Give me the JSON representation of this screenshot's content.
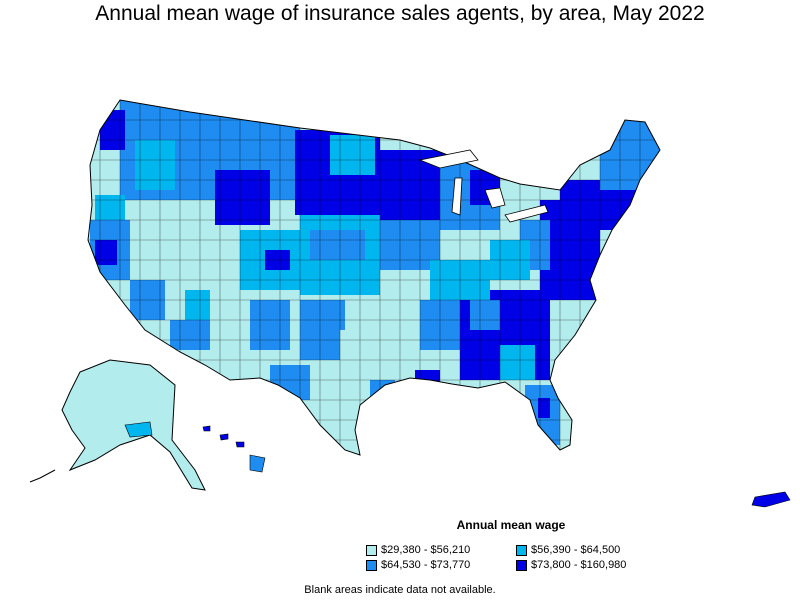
{
  "title": "Annual mean wage of insurance sales agents, by area, May 2022",
  "legend": {
    "title": "Annual mean wage",
    "items": [
      {
        "label": "$29,380 - $56,210",
        "color": "#b3ecec"
      },
      {
        "label": "$56,390 - $64,500",
        "color": "#00b6ef"
      },
      {
        "label": "$64,530 - $73,770",
        "color": "#1e8cf0"
      },
      {
        "label": "$73,800 - $160,980",
        "color": "#0000e6"
      }
    ]
  },
  "footnote": "Blank areas indicate data not available.",
  "colors": {
    "border": "#000000",
    "background": "#ffffff"
  }
}
